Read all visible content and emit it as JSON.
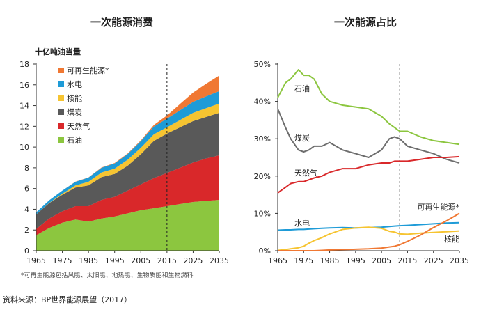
{
  "left_chart": {
    "title": "一次能源消费",
    "unit_label": "十亿吨油当量",
    "note": "*可再生能源包括风能、太阳能、地热能、生物质能和生物燃料",
    "x_ticks": [
      "1965",
      "1975",
      "1985",
      "1995",
      "2005",
      "2015",
      "2025",
      "2035"
    ],
    "y_ticks": [
      "0",
      "2",
      "4",
      "6",
      "8",
      "10",
      "12",
      "14",
      "16",
      "18"
    ],
    "legend": [
      {
        "label": "可再生能源*",
        "color": "#f07833"
      },
      {
        "label": "水电",
        "color": "#1e9bd7"
      },
      {
        "label": "核能",
        "color": "#f6c431"
      },
      {
        "label": "煤炭",
        "color": "#595959"
      },
      {
        "label": "天然气",
        "color": "#d9282a"
      },
      {
        "label": "石油",
        "color": "#8cc63f"
      }
    ]
  },
  "right_chart": {
    "title": "一次能源占比",
    "x_ticks": [
      "1965",
      "1975",
      "1985",
      "1995",
      "2005",
      "2015",
      "2025",
      "2035"
    ],
    "y_ticks": [
      "0%",
      "10%",
      "20%",
      "30%",
      "40%",
      "50%"
    ],
    "labels": {
      "oil": "石油",
      "coal": "煤炭",
      "gas": "天然气",
      "hydro": "水电",
      "renew": "可再生能源*",
      "nuclear": "核能"
    }
  },
  "source": "资料来源：BP世界能源展望（2017）",
  "chart_data": [
    {
      "type": "area",
      "title": "一次能源消费",
      "ylabel": "十亿吨油当量",
      "xlim": [
        1965,
        2035
      ],
      "ylim": [
        0,
        18
      ],
      "projection_start": 2015,
      "x": [
        1965,
        1970,
        1975,
        1980,
        1985,
        1990,
        1995,
        2000,
        2005,
        2010,
        2015,
        2020,
        2025,
        2030,
        2035
      ],
      "series": [
        {
          "name": "石油",
          "values": [
            1.5,
            2.2,
            2.7,
            3.0,
            2.8,
            3.1,
            3.3,
            3.6,
            3.9,
            4.1,
            4.3,
            4.5,
            4.7,
            4.8,
            4.9
          ]
        },
        {
          "name": "天然气",
          "values": [
            0.6,
            0.9,
            1.1,
            1.3,
            1.5,
            1.8,
            1.9,
            2.2,
            2.5,
            2.9,
            3.2,
            3.5,
            3.8,
            4.1,
            4.3
          ]
        },
        {
          "name": "煤炭",
          "values": [
            1.4,
            1.5,
            1.6,
            1.8,
            2.0,
            2.2,
            2.2,
            2.4,
            2.9,
            3.6,
            3.8,
            3.9,
            4.0,
            4.0,
            4.1
          ]
        },
        {
          "name": "核能",
          "values": [
            0.0,
            0.02,
            0.1,
            0.2,
            0.35,
            0.45,
            0.52,
            0.58,
            0.62,
            0.63,
            0.6,
            0.7,
            0.8,
            0.85,
            0.9
          ]
        },
        {
          "name": "水电",
          "values": [
            0.2,
            0.25,
            0.3,
            0.35,
            0.4,
            0.45,
            0.5,
            0.55,
            0.65,
            0.75,
            0.85,
            0.95,
            1.05,
            1.15,
            1.2
          ]
        },
        {
          "name": "可再生能源*",
          "values": [
            0.0,
            0.0,
            0.0,
            0.01,
            0.02,
            0.03,
            0.04,
            0.05,
            0.07,
            0.15,
            0.3,
            0.6,
            0.9,
            1.2,
            1.5
          ]
        }
      ]
    },
    {
      "type": "line",
      "title": "一次能源占比",
      "xlim": [
        1965,
        2035
      ],
      "ylim": [
        0,
        50
      ],
      "projection_start": 2012,
      "x": [
        1965,
        1968,
        1970,
        1973,
        1975,
        1977,
        1979,
        1982,
        1985,
        1990,
        1995,
        2000,
        2005,
        2008,
        2010,
        2012,
        2015,
        2020,
        2025,
        2030,
        2035
      ],
      "series": [
        {
          "name": "石油",
          "color": "#8cc63f",
          "values": [
            41,
            45,
            46,
            48.5,
            47,
            47,
            46,
            42,
            40,
            39,
            38.5,
            38,
            36,
            34,
            33,
            32,
            32,
            30.5,
            29.5,
            29,
            28.5
          ]
        },
        {
          "name": "煤炭",
          "color": "#6d6d6d",
          "values": [
            38,
            33,
            30,
            27,
            26.5,
            27,
            28,
            28,
            29,
            27,
            26,
            25,
            27,
            30,
            30.5,
            30,
            28,
            27,
            26,
            24.5,
            23.5
          ]
        },
        {
          "name": "天然气",
          "color": "#d9282a",
          "values": [
            15.5,
            17,
            18,
            18.5,
            18.5,
            19,
            19.5,
            20,
            21,
            22,
            22,
            23,
            23.5,
            23.5,
            24,
            24,
            24,
            24.5,
            25,
            25,
            25.2
          ]
        },
        {
          "name": "水电",
          "color": "#1e9bd7",
          "values": [
            5.5,
            5.6,
            5.6,
            5.7,
            5.7,
            5.8,
            5.9,
            6,
            6.1,
            6.2,
            6.1,
            6.2,
            6.3,
            6.5,
            6.6,
            6.7,
            6.8,
            7,
            7.2,
            7.4,
            7.5
          ]
        },
        {
          "name": "核能",
          "color": "#f6c431",
          "values": [
            0.1,
            0.3,
            0.5,
            0.8,
            1.2,
            2,
            2.7,
            3.5,
            4.5,
            5.7,
            6.1,
            6.3,
            6,
            5.2,
            5,
            4.5,
            4.4,
            4.7,
            4.9,
            5.1,
            5.3
          ]
        },
        {
          "name": "可再生能源*",
          "color": "#f07833",
          "values": [
            0,
            0,
            0,
            0,
            0,
            0,
            0,
            0.1,
            0.2,
            0.3,
            0.4,
            0.5,
            0.7,
            1,
            1.2,
            1.6,
            2.5,
            4.2,
            6.2,
            8,
            10
          ]
        }
      ]
    }
  ]
}
